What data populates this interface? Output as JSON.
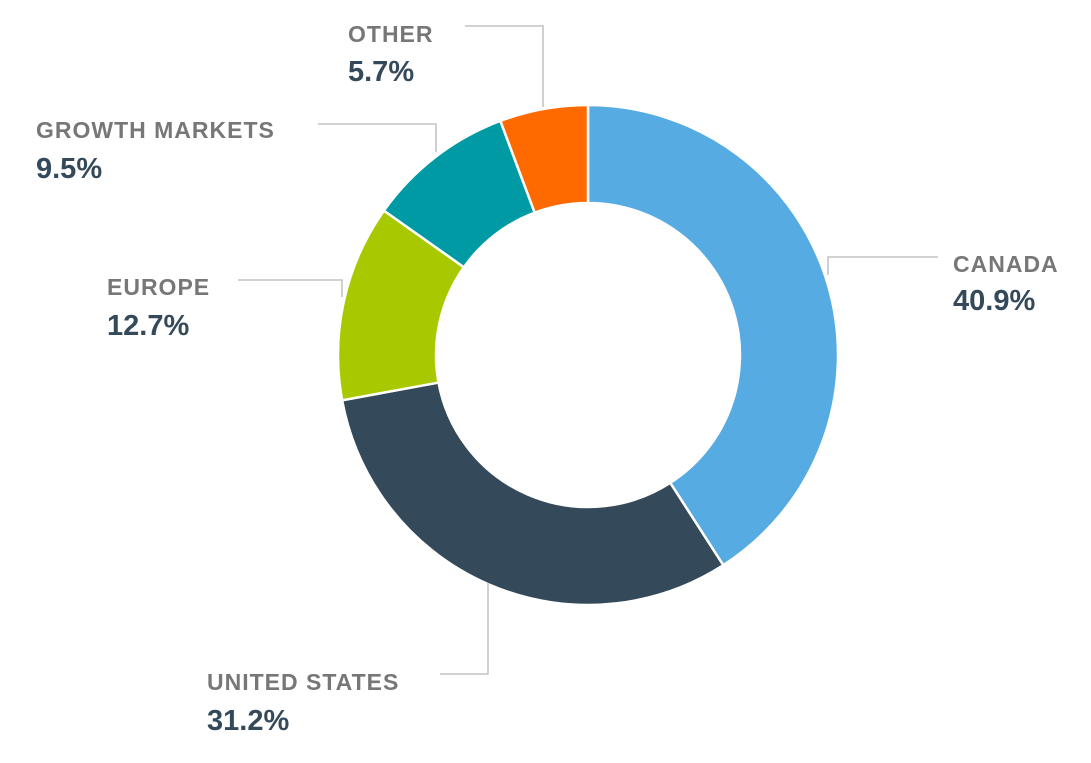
{
  "chart_data": {
    "type": "pie",
    "donut": true,
    "title": "",
    "categories": [
      "CANADA",
      "UNITED STATES",
      "EUROPE",
      "GROWTH MARKETS",
      "OTHER"
    ],
    "values": [
      40.9,
      31.2,
      12.7,
      9.5,
      5.7
    ],
    "value_labels": [
      "40.9%",
      "31.2%",
      "12.7%",
      "9.5%",
      "5.7%"
    ],
    "unit": "%",
    "colors": [
      "#57ABE3",
      "#344A5A",
      "#A8C800",
      "#009AA5",
      "#FF6A00"
    ],
    "legend": "none",
    "start": "top",
    "direction": "clockwise"
  },
  "style": {
    "label_color": "#777777",
    "value_color": "#344A5A",
    "leader_color": "#C4C4C4"
  }
}
